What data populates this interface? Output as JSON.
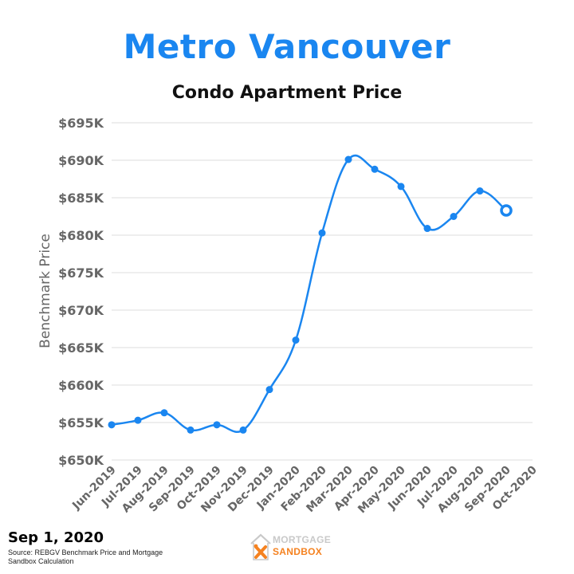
{
  "header": {
    "title": "Metro Vancouver",
    "subtitle": "Condo Apartment Price"
  },
  "footer": {
    "date": "Sep 1, 2020",
    "source": "Source: REBGV Benchmark Price and Mortgage Sandbox Calculation",
    "logo_line1": "MORTGAGE",
    "logo_line2": "SANDBOX"
  },
  "colors": {
    "title": "#1a86f0",
    "line": "#1a86f0",
    "grid": "#dcdcdc",
    "tick_text": "#666666",
    "logo_orange": "#f58220",
    "logo_gray": "#c9c9c9"
  },
  "chart_data": {
    "type": "line",
    "title": "Condo Apartment Price",
    "xlabel": "",
    "ylabel": "Benchmark Price",
    "categories": [
      "Jun-2019",
      "Jul-2019",
      "Aug-2019",
      "Sep-2019",
      "Oct-2019",
      "Nov-2019",
      "Dec-2019",
      "Jan-2020",
      "Feb-2020",
      "Mar-2020",
      "Apr-2020",
      "May-2020",
      "Jun-2020",
      "Jul-2020",
      "Aug-2020",
      "Sep-2020",
      "Oct-2020"
    ],
    "series": [
      {
        "values": [
          654700,
          655300,
          656300,
          654000,
          654700,
          654000,
          659400,
          666000,
          680300,
          690100,
          688800,
          686500,
          680900,
          682500,
          685900,
          683300,
          null
        ],
        "highlight_last": true
      }
    ],
    "ylim": [
      650000,
      695000
    ],
    "yticks": [
      650000,
      655000,
      660000,
      665000,
      670000,
      675000,
      680000,
      685000,
      690000,
      695000
    ],
    "ytick_labels": [
      "$650K",
      "$655K",
      "$660K",
      "$665K",
      "$670K",
      "$675K",
      "$680K",
      "$685K",
      "$690K",
      "$695K"
    ],
    "grid": true,
    "legend": "none"
  }
}
